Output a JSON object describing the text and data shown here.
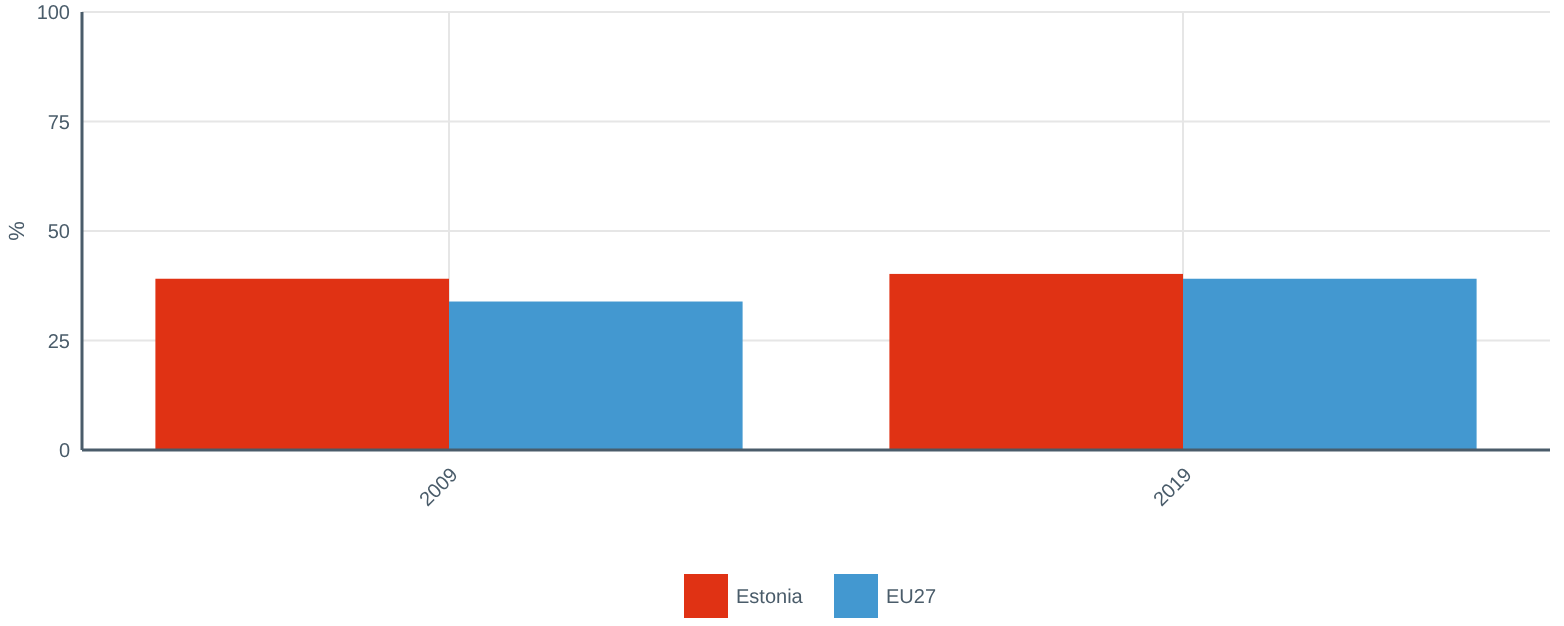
{
  "chart_data": {
    "type": "bar",
    "ylabel": "%",
    "categories": [
      "2009",
      "2019"
    ],
    "series": [
      {
        "name": "Estonia",
        "color": "#e03214",
        "values": [
          39.1,
          40.2
        ]
      },
      {
        "name": "EU27",
        "color": "#4398d0",
        "values": [
          33.9,
          39.1
        ]
      }
    ],
    "ylim": [
      0,
      100
    ],
    "yticks": [
      0,
      25,
      50,
      75,
      100
    ],
    "grid": true,
    "legend": "bottom"
  }
}
